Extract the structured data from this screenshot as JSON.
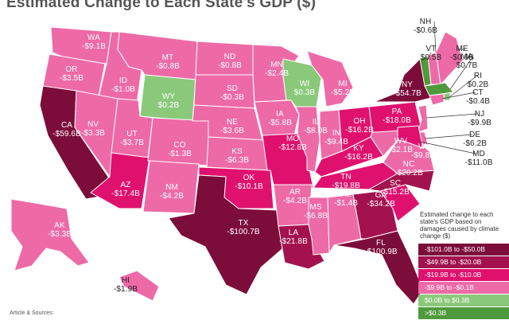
{
  "title": "Estimated Change to Each State's GDP ($)",
  "credit": "Article & Sources:",
  "legend": {
    "title": "Estimated change to each state's GDP based on damages caused by climate change ($)",
    "items": [
      {
        "label": "-$101.0B to -$50.0B",
        "color": "#7c0d3a"
      },
      {
        "label": "-$49.9B to -$20.0B",
        "color": "#a3124e"
      },
      {
        "label": "-$19.9B to -$10.0B",
        "color": "#e0116e"
      },
      {
        "label": "-$9.9B to -$0.1B",
        "color": "#ed6aa7"
      },
      {
        "label": "$0.0B to $0.3B",
        "color": "#8bc97a"
      },
      {
        "label": ">$0.3B",
        "color": "#4e9a3c"
      }
    ]
  },
  "states": [
    {
      "abbr": "WA",
      "value": "-$9.1B",
      "color": "#ed6aa7"
    },
    {
      "abbr": "OR",
      "value": "-$3.5B",
      "color": "#ed6aa7"
    },
    {
      "abbr": "CA",
      "value": "-$59.6B",
      "color": "#7c0d3a"
    },
    {
      "abbr": "ID",
      "value": "-$1.0B",
      "color": "#ed6aa7"
    },
    {
      "abbr": "NV",
      "value": "-$3.3B",
      "color": "#ed6aa7"
    },
    {
      "abbr": "MT",
      "value": "-$0.8B",
      "color": "#ed6aa7"
    },
    {
      "abbr": "WY",
      "value": "$0.2B",
      "color": "#8bc97a"
    },
    {
      "abbr": "UT",
      "value": "-$3.7B",
      "color": "#ed6aa7"
    },
    {
      "abbr": "AZ",
      "value": "-$17.4B",
      "color": "#e0116e"
    },
    {
      "abbr": "CO",
      "value": "-$1.3B",
      "color": "#ed6aa7"
    },
    {
      "abbr": "NM",
      "value": "-$4.2B",
      "color": "#ed6aa7"
    },
    {
      "abbr": "ND",
      "value": "-$0.8B",
      "color": "#ed6aa7"
    },
    {
      "abbr": "SD",
      "value": "-$0.3B",
      "color": "#ed6aa7"
    },
    {
      "abbr": "NE",
      "value": "-$3.6B",
      "color": "#ed6aa7"
    },
    {
      "abbr": "KS",
      "value": "-$6.3B",
      "color": "#ed6aa7"
    },
    {
      "abbr": "OK",
      "value": "-$10.1B",
      "color": "#e0116e"
    },
    {
      "abbr": "TX",
      "value": "-$100.7B",
      "color": "#7c0d3a"
    },
    {
      "abbr": "MN",
      "value": "-$2.4B",
      "color": "#ed6aa7"
    },
    {
      "abbr": "IA",
      "value": "-$5.8B",
      "color": "#ed6aa7"
    },
    {
      "abbr": "MO",
      "value": "-$12.8B",
      "color": "#e0116e"
    },
    {
      "abbr": "AR",
      "value": "-$4.2B",
      "color": "#ed6aa7"
    },
    {
      "abbr": "LA",
      "value": "-$21.8B",
      "color": "#a3124e"
    },
    {
      "abbr": "WI",
      "value": "$0.3B",
      "color": "#8bc97a"
    },
    {
      "abbr": "IL",
      "value": "-$8.0B",
      "color": "#ed6aa7"
    },
    {
      "abbr": "MS",
      "value": "-$6.8B",
      "color": "#ed6aa7"
    },
    {
      "abbr": "MI",
      "value": "-$5.2B",
      "color": "#ed6aa7"
    },
    {
      "abbr": "IN",
      "value": "-$9.4B",
      "color": "#ed6aa7"
    },
    {
      "abbr": "KY",
      "value": "-$16.2B",
      "color": "#e0116e"
    },
    {
      "abbr": "TN",
      "value": "-$19.8B",
      "color": "#e0116e"
    },
    {
      "abbr": "AL",
      "value": "-$1.4B",
      "color": "#ed6aa7"
    },
    {
      "abbr": "OH",
      "value": "-$16.2B",
      "color": "#e0116e"
    },
    {
      "abbr": "GA",
      "value": "-$34.2B",
      "color": "#a3124e"
    },
    {
      "abbr": "FL",
      "value": "-$100.9B",
      "color": "#7c0d3a"
    },
    {
      "abbr": "SC",
      "value": "-$15.2B",
      "color": "#e0116e"
    },
    {
      "abbr": "NC",
      "value": "-$20.2B",
      "color": "#a3124e"
    },
    {
      "abbr": "VA",
      "value": "-$9.8B",
      "color": "#ed6aa7"
    },
    {
      "abbr": "WV",
      "value": "-$2.1B",
      "color": "#ed6aa7"
    },
    {
      "abbr": "PA",
      "value": "-$18.0B",
      "color": "#e0116e"
    },
    {
      "abbr": "NY",
      "value": "-$54.7B",
      "color": "#7c0d3a"
    },
    {
      "abbr": "VT",
      "value": "$0.5B",
      "color": "#4e9a3c"
    },
    {
      "abbr": "NH",
      "value": "-$0.6B",
      "color": "#ed6aa7"
    },
    {
      "abbr": "ME",
      "value": "-$0.9B",
      "color": "#ed6aa7"
    },
    {
      "abbr": "MA",
      "value": "$0.7B",
      "color": "#4e9a3c"
    },
    {
      "abbr": "RI",
      "value": "$0.2B",
      "color": "#8bc97a"
    },
    {
      "abbr": "CT",
      "value": "-$0.4B",
      "color": "#ed6aa7"
    },
    {
      "abbr": "NJ",
      "value": "-$9.9B",
      "color": "#ed6aa7"
    },
    {
      "abbr": "DE",
      "value": "-$6.2B",
      "color": "#ed6aa7"
    },
    {
      "abbr": "MD",
      "value": "-$11.0B",
      "color": "#e0116e"
    },
    {
      "abbr": "AK",
      "value": "-$3.3B",
      "color": "#ed6aa7"
    },
    {
      "abbr": "HI",
      "value": "-$1.9B",
      "color": "#ed6aa7"
    }
  ]
}
